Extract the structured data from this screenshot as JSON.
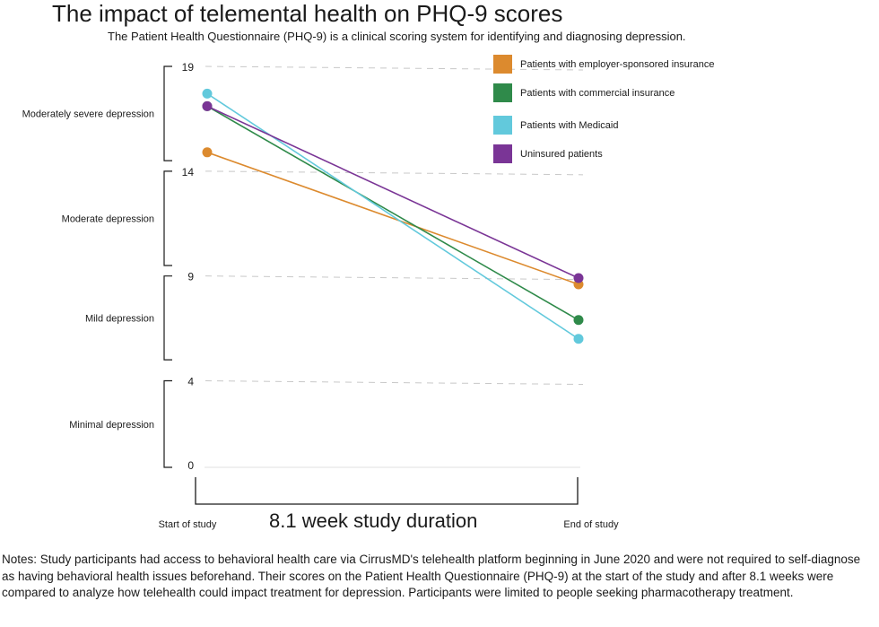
{
  "header": {
    "title": "The impact of telemental health on PHQ-9 scores",
    "subtitle": "The Patient Health Questionnaire (PHQ-9) is a clinical scoring system for identifying and diagnosing depression."
  },
  "chart_data": {
    "type": "line",
    "title": "The impact of telemental health on PHQ-9 scores",
    "subtitle": "The Patient Health Questionnaire (PHQ-9) is a clinical scoring system for identifying and diagnosing depression.",
    "categories": [
      "Start of study",
      "End of study"
    ],
    "xlabel": "8.1 week study duration",
    "ylim": [
      0,
      19
    ],
    "yticks": [
      0,
      4,
      9,
      14,
      19
    ],
    "grid": "dashed horizontal at tick values",
    "legend_position": "top-right",
    "severity_bands": [
      {
        "label": "Moderately severe depression",
        "range": [
          14.5,
          19
        ]
      },
      {
        "label": "Moderate depression",
        "range": [
          9.5,
          14
        ]
      },
      {
        "label": "Mild depression",
        "range": [
          5,
          9
        ]
      },
      {
        "label": "Minimal depression",
        "range": [
          0,
          4
        ]
      }
    ],
    "series": [
      {
        "name": "Patients with employer-sponsored insurance",
        "color": "#dc8a2e",
        "values": [
          14.9,
          8.6
        ]
      },
      {
        "name": "Patients with commercial insurance",
        "color": "#2f8a4a",
        "values": [
          17.1,
          6.9
        ]
      },
      {
        "name": "Patients with Medicaid",
        "color": "#62c9dc",
        "values": [
          17.7,
          6.0
        ]
      },
      {
        "name": "Uninsured patients",
        "color": "#7a3596",
        "values": [
          17.1,
          8.9
        ]
      }
    ]
  },
  "notes": "Notes: Study participants had access to behavioral health care via CirrusMD's telehealth platform beginning in June 2020 and were not required to self-diagnose as having behavioral health issues beforehand. Their scores on the Patient Health Questionnaire (PHQ-9) at the start of the study and after 8.1 weeks were compared to analyze how telehealth could impact treatment for depression.  Participants were limited to people seeking pharmacotherapy treatment."
}
